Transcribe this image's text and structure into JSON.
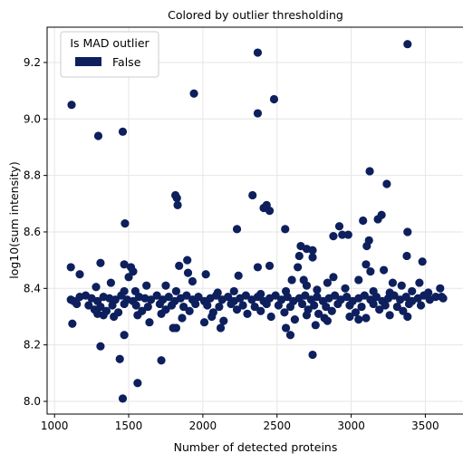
{
  "chart_data": {
    "type": "scatter",
    "title": "Colored by outlier thresholding",
    "xlabel": "Number of detected proteins",
    "ylabel": "log10(sum intensity)",
    "xlim": [
      950,
      3760
    ],
    "ylim": [
      7.955,
      9.325
    ],
    "xticks": [
      1000,
      1500,
      2000,
      2500,
      3000,
      3500
    ],
    "yticks": [
      8.0,
      8.2,
      8.4,
      8.6,
      8.8,
      9.0,
      9.2
    ],
    "grid": true,
    "legend": {
      "title": "Is MAD outlier",
      "placement": "top-left",
      "entries": [
        {
          "label": "False",
          "color": "#0d1f5c"
        }
      ]
    },
    "series": [
      {
        "name": "False",
        "color": "#0d1f5c",
        "points": [
          [
            3380,
            9.265
          ],
          [
            2370,
            9.235
          ],
          [
            1115,
            9.05
          ],
          [
            1940,
            9.09
          ],
          [
            2480,
            9.07
          ],
          [
            2370,
            9.02
          ],
          [
            1295,
            8.94
          ],
          [
            1460,
            8.955
          ],
          [
            3125,
            8.815
          ],
          [
            3240,
            8.77
          ],
          [
            1815,
            8.73
          ],
          [
            1825,
            8.72
          ],
          [
            2335,
            8.73
          ],
          [
            2410,
            8.685
          ],
          [
            2430,
            8.695
          ],
          [
            2450,
            8.675
          ],
          [
            1830,
            8.695
          ],
          [
            3205,
            8.66
          ],
          [
            1475,
            8.63
          ],
          [
            2230,
            8.61
          ],
          [
            2555,
            8.61
          ],
          [
            3080,
            8.64
          ],
          [
            3180,
            8.645
          ],
          [
            2920,
            8.62
          ],
          [
            2660,
            8.55
          ],
          [
            2700,
            8.54
          ],
          [
            2940,
            8.59
          ],
          [
            2980,
            8.59
          ],
          [
            2880,
            8.585
          ],
          [
            3120,
            8.57
          ],
          [
            3380,
            8.6
          ],
          [
            2740,
            8.535
          ],
          [
            3105,
            8.55
          ],
          [
            3375,
            8.515
          ],
          [
            2650,
            8.515
          ],
          [
            2740,
            8.51
          ],
          [
            3100,
            8.485
          ],
          [
            3480,
            8.495
          ],
          [
            3220,
            8.465
          ],
          [
            1310,
            8.49
          ],
          [
            1470,
            8.485
          ],
          [
            1515,
            8.475
          ],
          [
            1110,
            8.475
          ],
          [
            1530,
            8.46
          ],
          [
            1840,
            8.48
          ],
          [
            1895,
            8.5
          ],
          [
            2370,
            8.475
          ],
          [
            2640,
            8.475
          ],
          [
            2450,
            8.48
          ],
          [
            2600,
            8.43
          ],
          [
            2680,
            8.43
          ],
          [
            2840,
            8.42
          ],
          [
            2880,
            8.44
          ],
          [
            3130,
            8.46
          ],
          [
            3280,
            8.42
          ],
          [
            3460,
            8.42
          ],
          [
            1170,
            8.45
          ],
          [
            1500,
            8.44
          ],
          [
            1380,
            8.42
          ],
          [
            1900,
            8.455
          ],
          [
            2020,
            8.45
          ],
          [
            2240,
            8.445
          ],
          [
            1930,
            8.425
          ],
          [
            1620,
            8.41
          ],
          [
            1750,
            8.41
          ],
          [
            2700,
            8.41
          ],
          [
            3050,
            8.43
          ],
          [
            3340,
            8.41
          ],
          [
            3600,
            8.4
          ],
          [
            1280,
            8.405
          ],
          [
            1470,
            8.39
          ],
          [
            1545,
            8.39
          ],
          [
            1820,
            8.39
          ],
          [
            2100,
            8.385
          ],
          [
            2210,
            8.39
          ],
          [
            2390,
            8.38
          ],
          [
            2560,
            8.39
          ],
          [
            2770,
            8.395
          ],
          [
            2960,
            8.4
          ],
          [
            3150,
            8.39
          ],
          [
            3260,
            8.385
          ],
          [
            3410,
            8.39
          ],
          [
            3520,
            8.385
          ],
          [
            3610,
            8.37
          ],
          [
            1110,
            8.36
          ],
          [
            1130,
            8.355
          ],
          [
            1170,
            8.37
          ],
          [
            1210,
            8.375
          ],
          [
            1250,
            8.365
          ],
          [
            1290,
            8.355
          ],
          [
            1330,
            8.37
          ],
          [
            1370,
            8.365
          ],
          [
            1410,
            8.36
          ],
          [
            1450,
            8.375
          ],
          [
            1490,
            8.36
          ],
          [
            1530,
            8.355
          ],
          [
            1570,
            8.37
          ],
          [
            1610,
            8.365
          ],
          [
            1650,
            8.36
          ],
          [
            1690,
            8.375
          ],
          [
            1730,
            8.36
          ],
          [
            1770,
            8.37
          ],
          [
            1810,
            8.355
          ],
          [
            1850,
            8.365
          ],
          [
            1890,
            8.375
          ],
          [
            1930,
            8.36
          ],
          [
            1970,
            8.37
          ],
          [
            2010,
            8.355
          ],
          [
            2050,
            8.365
          ],
          [
            2090,
            8.375
          ],
          [
            2130,
            8.36
          ],
          [
            2170,
            8.37
          ],
          [
            2210,
            8.355
          ],
          [
            2250,
            8.365
          ],
          [
            2290,
            8.375
          ],
          [
            2330,
            8.36
          ],
          [
            2370,
            8.37
          ],
          [
            2410,
            8.355
          ],
          [
            2450,
            8.365
          ],
          [
            2490,
            8.375
          ],
          [
            2530,
            8.36
          ],
          [
            2570,
            8.37
          ],
          [
            2610,
            8.355
          ],
          [
            2650,
            8.365
          ],
          [
            2690,
            8.375
          ],
          [
            2730,
            8.36
          ],
          [
            2770,
            8.37
          ],
          [
            2810,
            8.355
          ],
          [
            2850,
            8.365
          ],
          [
            2890,
            8.375
          ],
          [
            2930,
            8.36
          ],
          [
            2970,
            8.37
          ],
          [
            3010,
            8.355
          ],
          [
            3050,
            8.365
          ],
          [
            3090,
            8.375
          ],
          [
            3130,
            8.36
          ],
          [
            3170,
            8.37
          ],
          [
            3210,
            8.355
          ],
          [
            3250,
            8.365
          ],
          [
            3290,
            8.375
          ],
          [
            3330,
            8.36
          ],
          [
            3370,
            8.37
          ],
          [
            3410,
            8.355
          ],
          [
            3450,
            8.365
          ],
          [
            3490,
            8.375
          ],
          [
            3530,
            8.36
          ],
          [
            3570,
            8.37
          ],
          [
            3620,
            8.365
          ],
          [
            1150,
            8.345
          ],
          [
            1230,
            8.34
          ],
          [
            1310,
            8.335
          ],
          [
            1390,
            8.34
          ],
          [
            1470,
            8.345
          ],
          [
            1550,
            8.34
          ],
          [
            1630,
            8.335
          ],
          [
            1710,
            8.345
          ],
          [
            1790,
            8.34
          ],
          [
            1870,
            8.335
          ],
          [
            1950,
            8.345
          ],
          [
            2030,
            8.34
          ],
          [
            2110,
            8.335
          ],
          [
            2190,
            8.345
          ],
          [
            2270,
            8.34
          ],
          [
            2350,
            8.335
          ],
          [
            2430,
            8.345
          ],
          [
            2510,
            8.34
          ],
          [
            2590,
            8.335
          ],
          [
            2670,
            8.345
          ],
          [
            2750,
            8.34
          ],
          [
            2830,
            8.335
          ],
          [
            2910,
            8.345
          ],
          [
            2990,
            8.34
          ],
          [
            3070,
            8.335
          ],
          [
            3150,
            8.345
          ],
          [
            3230,
            8.34
          ],
          [
            3310,
            8.335
          ],
          [
            3390,
            8.345
          ],
          [
            3470,
            8.34
          ],
          [
            1270,
            8.325
          ],
          [
            1350,
            8.32
          ],
          [
            1430,
            8.315
          ],
          [
            1590,
            8.32
          ],
          [
            1750,
            8.325
          ],
          [
            1910,
            8.32
          ],
          [
            2070,
            8.315
          ],
          [
            2230,
            8.325
          ],
          [
            2390,
            8.32
          ],
          [
            2550,
            8.315
          ],
          [
            2710,
            8.325
          ],
          [
            2870,
            8.32
          ],
          [
            3030,
            8.315
          ],
          [
            3190,
            8.325
          ],
          [
            3350,
            8.32
          ],
          [
            1290,
            8.31
          ],
          [
            1330,
            8.305
          ],
          [
            1400,
            8.3
          ],
          [
            1560,
            8.305
          ],
          [
            1720,
            8.31
          ],
          [
            2060,
            8.3
          ],
          [
            2300,
            8.31
          ],
          [
            2460,
            8.3
          ],
          [
            2700,
            8.305
          ],
          [
            2780,
            8.31
          ],
          [
            2990,
            8.3
          ],
          [
            3100,
            8.295
          ],
          [
            3260,
            8.305
          ],
          [
            3380,
            8.3
          ],
          [
            1860,
            8.295
          ],
          [
            2010,
            8.28
          ],
          [
            2140,
            8.285
          ],
          [
            2620,
            8.29
          ],
          [
            2820,
            8.295
          ],
          [
            3050,
            8.29
          ],
          [
            1120,
            8.275
          ],
          [
            1640,
            8.28
          ],
          [
            1800,
            8.26
          ],
          [
            1820,
            8.26
          ],
          [
            2120,
            8.26
          ],
          [
            2560,
            8.26
          ],
          [
            2590,
            8.235
          ],
          [
            2760,
            8.27
          ],
          [
            2840,
            8.285
          ],
          [
            1470,
            8.235
          ],
          [
            1310,
            8.195
          ],
          [
            1440,
            8.15
          ],
          [
            1720,
            8.145
          ],
          [
            2740,
            8.165
          ],
          [
            1560,
            8.065
          ],
          [
            1460,
            8.01
          ]
        ]
      }
    ]
  }
}
